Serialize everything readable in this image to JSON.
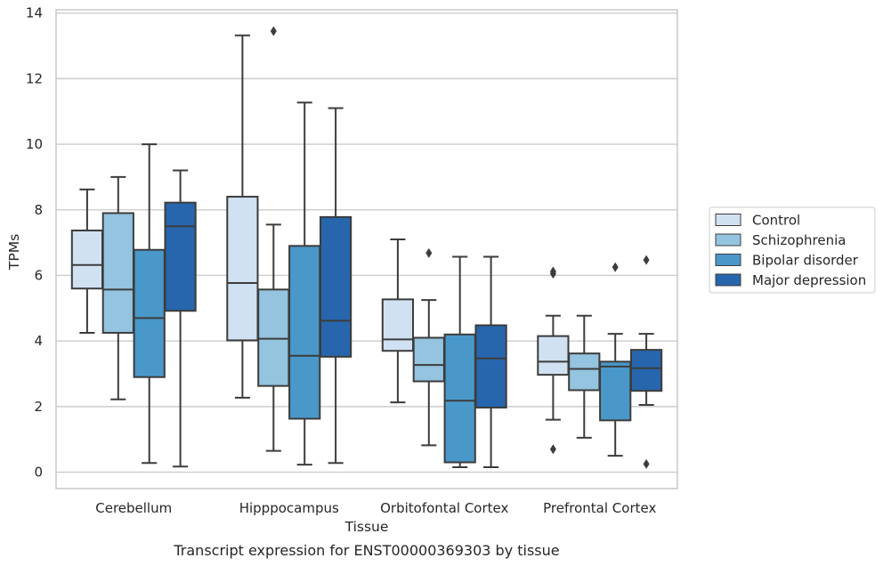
{
  "chart_data": {
    "type": "box",
    "title": "",
    "caption": "Transcript expression for ENST00000369303 by tissue",
    "xlabel": "Tissue",
    "ylabel": "TPMs",
    "ylim": [
      -0.5,
      14.1
    ],
    "yticks": [
      0,
      2,
      4,
      6,
      8,
      10,
      12,
      14
    ],
    "grid": true,
    "legend_position": "right",
    "categories": [
      "Cerebellum",
      "Hipppocampus",
      "Orbitofontal Cortex",
      "Prefrontal Cortex"
    ],
    "series": [
      {
        "name": "Control",
        "color": "#d0e1f2",
        "boxes": [
          {
            "whislo": 4.25,
            "q1": 5.6,
            "med": 6.32,
            "q3": 7.37,
            "whishi": 8.62,
            "fliers": []
          },
          {
            "whislo": 2.27,
            "q1": 4.02,
            "med": 5.77,
            "q3": 8.4,
            "whishi": 13.32,
            "fliers": []
          },
          {
            "whislo": 2.13,
            "q1": 3.7,
            "med": 4.05,
            "q3": 5.27,
            "whishi": 7.1,
            "fliers": []
          },
          {
            "whislo": 1.6,
            "q1": 2.97,
            "med": 3.37,
            "q3": 4.15,
            "whishi": 4.77,
            "fliers": [
              0.7,
              6.05,
              6.12
            ]
          }
        ]
      },
      {
        "name": "Schizophrenia",
        "color": "#94c4df",
        "boxes": [
          {
            "whislo": 2.22,
            "q1": 4.25,
            "med": 5.57,
            "q3": 7.9,
            "whishi": 9.0,
            "fliers": []
          },
          {
            "whislo": 0.65,
            "q1": 2.63,
            "med": 4.07,
            "q3": 5.57,
            "whishi": 7.55,
            "fliers": [
              13.45
            ]
          },
          {
            "whislo": 0.82,
            "q1": 2.77,
            "med": 3.27,
            "q3": 4.1,
            "whishi": 5.25,
            "fliers": [
              6.68
            ]
          },
          {
            "whislo": 1.05,
            "q1": 2.5,
            "med": 3.15,
            "q3": 3.62,
            "whishi": 4.77,
            "fliers": []
          }
        ]
      },
      {
        "name": "Bipolar disorder",
        "color": "#4a98c9",
        "boxes": [
          {
            "whislo": 0.28,
            "q1": 2.9,
            "med": 4.7,
            "q3": 6.78,
            "whishi": 10.0,
            "fliers": []
          },
          {
            "whislo": 0.23,
            "q1": 1.63,
            "med": 3.55,
            "q3": 6.9,
            "whishi": 11.27,
            "fliers": []
          },
          {
            "whislo": 0.15,
            "q1": 0.3,
            "med": 2.18,
            "q3": 4.2,
            "whishi": 6.57,
            "fliers": []
          },
          {
            "whislo": 0.5,
            "q1": 1.58,
            "med": 3.22,
            "q3": 3.37,
            "whishi": 4.22,
            "fliers": [
              6.25
            ]
          }
        ]
      },
      {
        "name": "Major depression",
        "color": "#2766ac",
        "boxes": [
          {
            "whislo": 0.17,
            "q1": 4.92,
            "med": 7.5,
            "q3": 8.22,
            "whishi": 9.2,
            "fliers": []
          },
          {
            "whislo": 0.28,
            "q1": 3.52,
            "med": 4.62,
            "q3": 7.78,
            "whishi": 11.1,
            "fliers": []
          },
          {
            "whislo": 0.15,
            "q1": 1.97,
            "med": 3.47,
            "q3": 4.48,
            "whishi": 6.57,
            "fliers": []
          },
          {
            "whislo": 2.05,
            "q1": 2.48,
            "med": 3.17,
            "q3": 3.73,
            "whishi": 4.22,
            "fliers": [
              0.25,
              6.47
            ]
          }
        ]
      }
    ]
  }
}
